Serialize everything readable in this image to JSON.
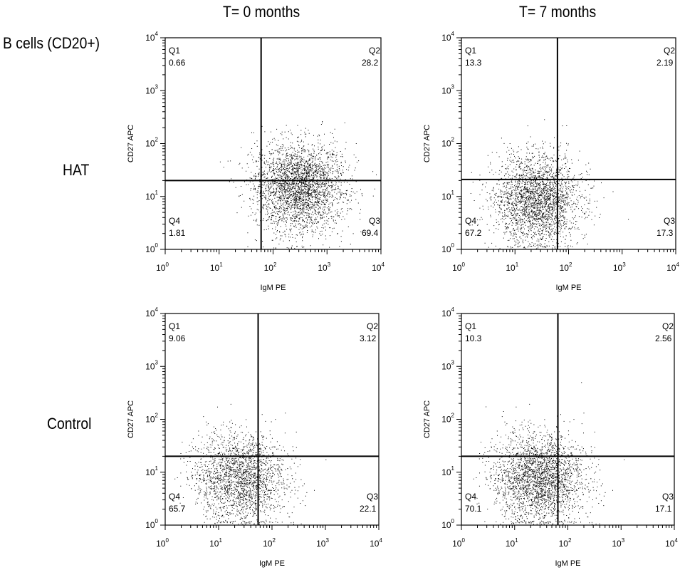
{
  "figure": {
    "row_label_title": "B cells (CD20+)",
    "column_titles": [
      "T= 0 months",
      "T= 7 months"
    ],
    "row_labels": [
      "HAT",
      "Control"
    ]
  },
  "chart_data": [
    {
      "type": "scatter",
      "group": "HAT",
      "timepoint": "T= 0 months",
      "xlabel": "IgM PE",
      "ylabel": "CD27 APC",
      "xscale": "log",
      "yscale": "log",
      "xlim": [
        1,
        10000
      ],
      "ylim": [
        1,
        10000
      ],
      "gate": {
        "x": 60,
        "y": 20
      },
      "quadrants": [
        {
          "name": "Q1",
          "value": "0.66"
        },
        {
          "name": "Q2",
          "value": "28.2"
        },
        {
          "name": "Q3",
          "value": "69.4"
        },
        {
          "name": "Q4",
          "value": "1.81"
        }
      ],
      "point_cloud": {
        "count": 3000,
        "x_center": 300,
        "x_spread": 0.42,
        "y_center": 15,
        "y_spread": 0.42
      }
    },
    {
      "type": "scatter",
      "group": "HAT",
      "timepoint": "T= 7 months",
      "xlabel": "IgM PE",
      "ylabel": "CD27 APC",
      "xscale": "log",
      "yscale": "log",
      "xlim": [
        1,
        10000
      ],
      "ylim": [
        1,
        10000
      ],
      "gate": {
        "x": 62,
        "y": 21
      },
      "quadrants": [
        {
          "name": "Q1",
          "value": "13.3"
        },
        {
          "name": "Q2",
          "value": "2.19"
        },
        {
          "name": "Q3",
          "value": "17.3"
        },
        {
          "name": "Q4",
          "value": "67.2"
        }
      ],
      "point_cloud": {
        "count": 3000,
        "x_center": 25,
        "x_spread": 0.4,
        "y_center": 9,
        "y_spread": 0.42
      }
    },
    {
      "type": "scatter",
      "group": "Control",
      "timepoint": "T= 0 months",
      "xlabel": "IgM PE",
      "ylabel": "CD27 APC",
      "xscale": "log",
      "yscale": "log",
      "xlim": [
        1,
        10000
      ],
      "ylim": [
        1,
        10000
      ],
      "gate": {
        "x": 55,
        "y": 20
      },
      "quadrants": [
        {
          "name": "Q1",
          "value": "9.06"
        },
        {
          "name": "Q2",
          "value": "3.12"
        },
        {
          "name": "Q3",
          "value": "22.1"
        },
        {
          "name": "Q4",
          "value": "65.7"
        }
      ],
      "point_cloud": {
        "count": 2200,
        "x_center": 25,
        "x_spread": 0.42,
        "y_center": 8,
        "y_spread": 0.42
      }
    },
    {
      "type": "scatter",
      "group": "Control",
      "timepoint": "T= 7 months",
      "xlabel": "IgM PE",
      "ylabel": "CD27 APC",
      "xscale": "log",
      "yscale": "log",
      "xlim": [
        1,
        10000
      ],
      "ylim": [
        1,
        10000
      ],
      "gate": {
        "x": 65,
        "y": 20
      },
      "quadrants": [
        {
          "name": "Q1",
          "value": "10.3"
        },
        {
          "name": "Q2",
          "value": "2.56"
        },
        {
          "name": "Q3",
          "value": "17.1"
        },
        {
          "name": "Q4",
          "value": "70.1"
        }
      ],
      "point_cloud": {
        "count": 3000,
        "x_center": 28,
        "x_spread": 0.42,
        "y_center": 8,
        "y_spread": 0.42
      }
    }
  ]
}
